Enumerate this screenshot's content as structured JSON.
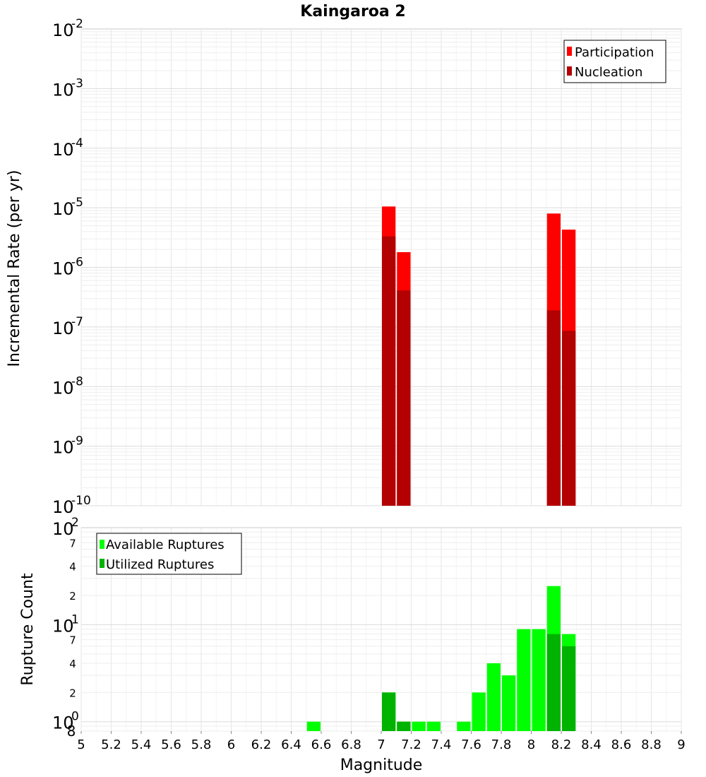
{
  "chart_data": [
    {
      "type": "bar",
      "title": "Kaingaroa 2",
      "xlabel": "",
      "ylabel": "Incremental Rate (per yr)",
      "yscale": "log",
      "xlim": [
        5,
        9
      ],
      "ylim": [
        1e-10,
        0.01
      ],
      "y_tick_labels": [
        {
          "base": "10",
          "exp": "-2"
        },
        {
          "base": "10",
          "exp": "-3"
        },
        {
          "base": "10",
          "exp": "-4"
        },
        {
          "base": "10",
          "exp": "-5"
        },
        {
          "base": "10",
          "exp": "-6"
        },
        {
          "base": "10",
          "exp": "-7"
        },
        {
          "base": "10",
          "exp": "-8"
        },
        {
          "base": "10",
          "exp": "-9"
        },
        {
          "base": "10",
          "exp": "-10"
        }
      ],
      "grid": true,
      "legend_position": "top-right",
      "x": [
        7.05,
        7.15,
        8.15,
        8.25
      ],
      "series": [
        {
          "name": "Participation",
          "color": "#ff0000",
          "values": [
            1.05e-05,
            1.8e-06,
            8e-06,
            4.3e-06
          ]
        },
        {
          "name": "Nucleation",
          "color": "#b30000",
          "values": [
            3.3e-06,
            4.1e-07,
            1.9e-07,
            8.6e-08
          ]
        }
      ]
    },
    {
      "type": "bar",
      "title": "",
      "xlabel": "Magnitude",
      "ylabel": "Rupture Count",
      "yscale": "log",
      "xlim": [
        5,
        9
      ],
      "ylim": [
        0.8,
        100
      ],
      "x_ticks": [
        "5",
        "5.2",
        "5.4",
        "5.6",
        "5.8",
        "6",
        "6.2",
        "6.4",
        "6.6",
        "6.8",
        "7",
        "7.2",
        "7.4",
        "7.6",
        "7.8",
        "8",
        "8.2",
        "8.4",
        "8.6",
        "8.8",
        "9"
      ],
      "y_major_ticks": [
        {
          "base": "10",
          "exp": "2",
          "value": 100
        },
        {
          "base": "10",
          "exp": "1",
          "value": 10
        },
        {
          "base": "10",
          "exp": "0",
          "value": 1
        }
      ],
      "y_minor_ticks": [
        {
          "label": "7",
          "value": 70
        },
        {
          "label": "4",
          "value": 40
        },
        {
          "label": "2",
          "value": 20
        },
        {
          "label": "7",
          "value": 7
        },
        {
          "label": "4",
          "value": 4
        },
        {
          "label": "2",
          "value": 2
        },
        {
          "label": "8",
          "value": 0.8
        }
      ],
      "grid": true,
      "legend_position": "top-left",
      "x": [
        6.55,
        7.05,
        7.15,
        7.25,
        7.35,
        7.55,
        7.65,
        7.75,
        7.85,
        7.95,
        8.05,
        8.15,
        8.25
      ],
      "series": [
        {
          "name": "Available Ruptures",
          "color": "#00ff00",
          "values": [
            1,
            2,
            1,
            1,
            1,
            1,
            2,
            4,
            3,
            9,
            9,
            25,
            8
          ]
        },
        {
          "name": "Utilized Ruptures",
          "color": "#00b300",
          "values": [
            0,
            2,
            1,
            0,
            0,
            0,
            0,
            0,
            0,
            0,
            0,
            8,
            6
          ]
        }
      ]
    }
  ]
}
